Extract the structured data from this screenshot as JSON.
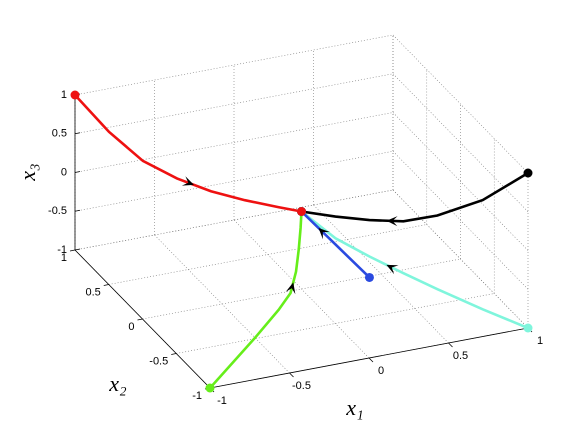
{
  "chart_data": {
    "type": "line3d",
    "xlabel": "x₁",
    "ylabel": "x₂",
    "zlabel": "x₃",
    "xlim": [
      -1,
      1
    ],
    "ylim": [
      -1,
      1
    ],
    "zlim": [
      -1,
      1
    ],
    "xticks": [
      -1,
      -0.5,
      0,
      0.5,
      1
    ],
    "yticks": [
      -1,
      -0.5,
      0,
      0.5,
      1
    ],
    "zticks": [
      -1,
      -0.5,
      0,
      0.5,
      1
    ],
    "grid": true,
    "series": [
      {
        "color": "#000000",
        "x1": [
          1,
          0.8,
          0.6,
          0.45,
          0.3,
          0.15,
          0
        ],
        "x2": [
          -1,
          -0.8,
          -0.6,
          -0.45,
          -0.3,
          -0.15,
          0
        ],
        "x3": [
          1,
          0.55,
          0.25,
          0.1,
          0.04,
          0.01,
          0
        ]
      },
      {
        "color": "#7ff5dc",
        "x1": [
          1,
          0.8,
          0.6,
          0.45,
          0.3,
          0.15,
          0
        ],
        "x2": [
          -1,
          -0.8,
          -0.6,
          -0.45,
          -0.3,
          -0.15,
          0
        ],
        "x3": [
          -1,
          -0.86,
          -0.7,
          -0.57,
          -0.43,
          -0.27,
          0
        ]
      },
      {
        "color": "#66ee1a",
        "x1": [
          -1,
          -0.5,
          -0.25,
          -0.12,
          -0.06,
          -0.03,
          -0.01,
          0
        ],
        "x2": [
          -1,
          -0.5,
          -0.25,
          -0.12,
          -0.06,
          -0.03,
          -0.01,
          0
        ],
        "x3": [
          -1,
          -0.98,
          -0.95,
          -0.9,
          -0.7,
          -0.45,
          -0.2,
          0
        ]
      },
      {
        "color": "#2a4ae0",
        "x1": [
          0.3,
          0.15,
          0
        ],
        "x2": [
          -0.3,
          -0.15,
          0
        ],
        "x3": [
          -0.7,
          -0.35,
          0
        ]
      },
      {
        "color": "#ee1111",
        "x1": [
          -1,
          -0.85,
          -0.7,
          -0.55,
          -0.4,
          -0.25,
          -0.1,
          0
        ],
        "x2": [
          1,
          0.85,
          0.7,
          0.55,
          0.4,
          0.25,
          0.1,
          0
        ],
        "x3": [
          1,
          0.6,
          0.3,
          0.15,
          0.06,
          0.02,
          0.005,
          0
        ]
      }
    ]
  }
}
